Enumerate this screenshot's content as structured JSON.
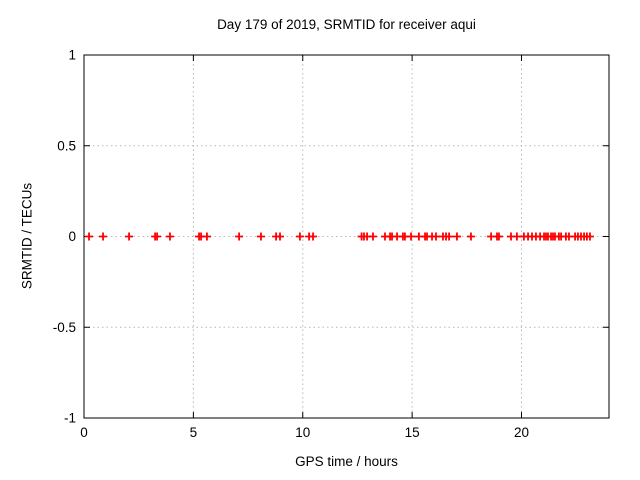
{
  "background_color": "#ffffff",
  "chart_data": {
    "type": "scatter",
    "title": "Day 179 of 2019, SRMTID for receiver aqui",
    "xlabel": "GPS time / hours",
    "ylabel": "SRMTID / TECUs",
    "xlim": [
      0,
      24
    ],
    "ylim": [
      -1,
      1
    ],
    "xticks": [
      0,
      5,
      10,
      15,
      20
    ],
    "xtick_labels": [
      "0",
      "5",
      "10",
      "15",
      "20"
    ],
    "yticks": [
      -1,
      -0.5,
      0,
      0.5,
      1
    ],
    "ytick_labels": [
      "-1",
      "-0.5",
      "0",
      "0.5",
      "1"
    ],
    "grid": true,
    "grid_color": "#b8b8b8",
    "border_color": "#000000",
    "legend": "none",
    "marker": {
      "shape": "plus",
      "color": "#ff0000",
      "size": 8
    },
    "series": [
      {
        "name": "SRMTID",
        "y_constant": 0,
        "x": [
          0.23,
          0.87,
          2.06,
          3.25,
          3.34,
          3.93,
          5.26,
          5.35,
          5.62,
          7.09,
          8.09,
          8.78,
          8.96,
          9.87,
          10.29,
          10.47,
          12.69,
          12.8,
          12.94,
          13.21,
          13.76,
          13.99,
          14.08,
          14.31,
          14.58,
          14.67,
          14.95,
          15.31,
          15.59,
          15.68,
          15.91,
          16.09,
          16.41,
          16.55,
          16.69,
          17.05,
          17.69,
          18.61,
          18.88,
          18.97,
          19.52,
          19.79,
          20.11,
          20.3,
          20.48,
          20.66,
          20.85,
          21.03,
          21.12,
          21.21,
          21.35,
          21.44,
          21.53,
          21.71,
          21.81,
          22.03,
          22.17,
          22.45,
          22.58,
          22.72,
          22.86,
          22.99,
          23.13
        ]
      }
    ]
  }
}
